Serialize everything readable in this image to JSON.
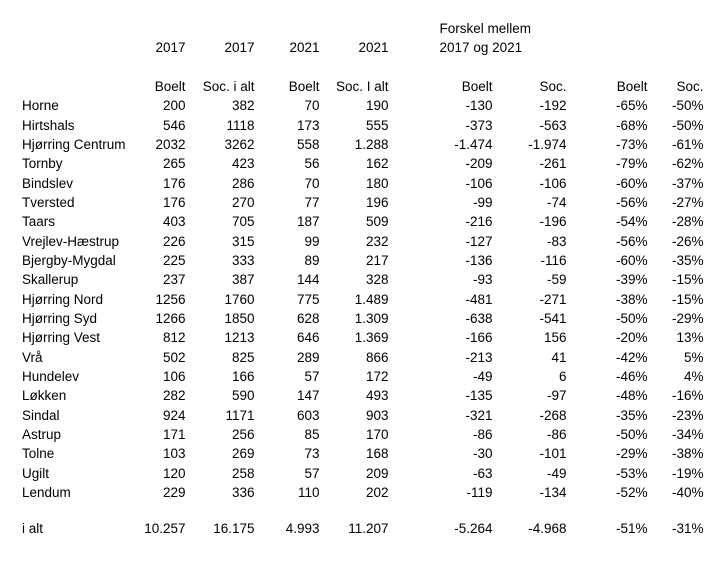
{
  "page": {
    "background_color": "#ffffff",
    "text_color": "#000000"
  },
  "table": {
    "year_headers": [
      "2017",
      "2017",
      "2021",
      "2021"
    ],
    "diff_header": {
      "line1": "Forskel mellem",
      "line2": "2017 og 2021"
    },
    "sub_headers": [
      "Boelt",
      "Soc. i alt",
      "Boelt",
      "Soc. I alt",
      "Boelt",
      "Soc.",
      "Boelt",
      "Soc."
    ],
    "rows": [
      {
        "label": "Horne",
        "values": [
          "200",
          "382",
          "70",
          "190",
          "-130",
          "-192",
          "-65%",
          "-50%"
        ]
      },
      {
        "label": "Hirtshals",
        "values": [
          "546",
          "1118",
          "173",
          "555",
          "-373",
          "-563",
          "-68%",
          "-50%"
        ]
      },
      {
        "label": "Hjørring Centrum",
        "values": [
          "2032",
          "3262",
          "558",
          "1.288",
          "-1.474",
          "-1.974",
          "-73%",
          "-61%"
        ]
      },
      {
        "label": "Tornby",
        "values": [
          "265",
          "423",
          "56",
          "162",
          "-209",
          "-261",
          "-79%",
          "-62%"
        ]
      },
      {
        "label": "Bindslev",
        "values": [
          "176",
          "286",
          "70",
          "180",
          "-106",
          "-106",
          "-60%",
          "-37%"
        ]
      },
      {
        "label": "Tversted",
        "values": [
          "176",
          "270",
          "77",
          "196",
          "-99",
          "-74",
          "-56%",
          "-27%"
        ]
      },
      {
        "label": "Taars",
        "values": [
          "403",
          "705",
          "187",
          "509",
          "-216",
          "-196",
          "-54%",
          "-28%"
        ]
      },
      {
        "label": "Vrejlev-Hæstrup",
        "values": [
          "226",
          "315",
          "99",
          "232",
          "-127",
          "-83",
          "-56%",
          "-26%"
        ]
      },
      {
        "label": "Bjergby-Mygdal",
        "values": [
          "225",
          "333",
          "89",
          "217",
          "-136",
          "-116",
          "-60%",
          "-35%"
        ]
      },
      {
        "label": "Skallerup",
        "values": [
          "237",
          "387",
          "144",
          "328",
          "-93",
          "-59",
          "-39%",
          "-15%"
        ]
      },
      {
        "label": "Hjørring Nord",
        "values": [
          "1256",
          "1760",
          "775",
          "1.489",
          "-481",
          "-271",
          "-38%",
          "-15%"
        ]
      },
      {
        "label": "Hjørring Syd",
        "values": [
          "1266",
          "1850",
          "628",
          "1.309",
          "-638",
          "-541",
          "-50%",
          "-29%"
        ]
      },
      {
        "label": "Hjørring Vest",
        "values": [
          "812",
          "1213",
          "646",
          "1.369",
          "-166",
          "156",
          "-20%",
          "13%"
        ]
      },
      {
        "label": "Vrå",
        "values": [
          "502",
          "825",
          "289",
          "866",
          "-213",
          "41",
          "-42%",
          "5%"
        ]
      },
      {
        "label": "Hundelev",
        "values": [
          "106",
          "166",
          "57",
          "172",
          "-49",
          "6",
          "-46%",
          "4%"
        ]
      },
      {
        "label": "Løkken",
        "values": [
          "282",
          "590",
          "147",
          "493",
          "-135",
          "-97",
          "-48%",
          "-16%"
        ]
      },
      {
        "label": "Sindal",
        "values": [
          "924",
          "1171",
          "603",
          "903",
          "-321",
          "-268",
          "-35%",
          "-23%"
        ]
      },
      {
        "label": "Astrup",
        "values": [
          "171",
          "256",
          "85",
          "170",
          "-86",
          "-86",
          "-50%",
          "-34%"
        ]
      },
      {
        "label": "Tolne",
        "values": [
          "103",
          "269",
          "73",
          "168",
          "-30",
          "-101",
          "-29%",
          "-38%"
        ]
      },
      {
        "label": "Ugilt",
        "values": [
          "120",
          "258",
          "57",
          "209",
          "-63",
          "-49",
          "-53%",
          "-19%"
        ]
      },
      {
        "label": "Lendum",
        "values": [
          "229",
          "336",
          "110",
          "202",
          "-119",
          "-134",
          "-52%",
          "-40%"
        ]
      }
    ],
    "total": {
      "label": "i alt",
      "values": [
        "10.257",
        "16.175",
        "4.993",
        "11.207",
        "-5.264",
        "-4.968",
        "-51%",
        "-31%"
      ]
    }
  },
  "chart_data": {
    "type": "table",
    "title": "Forskel mellem 2017 og 2021",
    "columns": [
      "",
      "2017 Boelt",
      "2017 Soc. i alt",
      "2021 Boelt",
      "2021 Soc. I alt",
      "Forskel Boelt",
      "Forskel Soc.",
      "Forskel Boelt %",
      "Forskel Soc. %"
    ],
    "rows": [
      [
        "Horne",
        200,
        382,
        70,
        190,
        -130,
        -192,
        "-65%",
        "-50%"
      ],
      [
        "Hirtshals",
        546,
        1118,
        173,
        555,
        -373,
        -563,
        "-68%",
        "-50%"
      ],
      [
        "Hjørring Centrum",
        2032,
        3262,
        558,
        1288,
        -1474,
        -1974,
        "-73%",
        "-61%"
      ],
      [
        "Tornby",
        265,
        423,
        56,
        162,
        -209,
        -261,
        "-79%",
        "-62%"
      ],
      [
        "Bindslev",
        176,
        286,
        70,
        180,
        -106,
        -106,
        "-60%",
        "-37%"
      ],
      [
        "Tversted",
        176,
        270,
        77,
        196,
        -99,
        -74,
        "-56%",
        "-27%"
      ],
      [
        "Taars",
        403,
        705,
        187,
        509,
        -216,
        -196,
        "-54%",
        "-28%"
      ],
      [
        "Vrejlev-Hæstrup",
        226,
        315,
        99,
        232,
        -127,
        -83,
        "-56%",
        "-26%"
      ],
      [
        "Bjergby-Mygdal",
        225,
        333,
        89,
        217,
        -136,
        -116,
        "-60%",
        "-35%"
      ],
      [
        "Skallerup",
        237,
        387,
        144,
        328,
        -93,
        -59,
        "-39%",
        "-15%"
      ],
      [
        "Hjørring Nord",
        1256,
        1760,
        775,
        1489,
        -481,
        -271,
        "-38%",
        "-15%"
      ],
      [
        "Hjørring Syd",
        1266,
        1850,
        628,
        1309,
        -638,
        -541,
        "-50%",
        "-29%"
      ],
      [
        "Hjørring Vest",
        812,
        1213,
        646,
        1369,
        -166,
        156,
        "-20%",
        "13%"
      ],
      [
        "Vrå",
        502,
        825,
        289,
        866,
        -213,
        41,
        "-42%",
        "5%"
      ],
      [
        "Hundelev",
        106,
        166,
        57,
        172,
        -49,
        6,
        "-46%",
        "4%"
      ],
      [
        "Løkken",
        282,
        590,
        147,
        493,
        -135,
        -97,
        "-48%",
        "-16%"
      ],
      [
        "Sindal",
        924,
        1171,
        603,
        903,
        -321,
        -268,
        "-35%",
        "-23%"
      ],
      [
        "Astrup",
        171,
        256,
        85,
        170,
        -86,
        -86,
        "-50%",
        "-34%"
      ],
      [
        "Tolne",
        103,
        269,
        73,
        168,
        -30,
        -101,
        "-29%",
        "-38%"
      ],
      [
        "Ugilt",
        120,
        258,
        57,
        209,
        -63,
        -49,
        "-53%",
        "-19%"
      ],
      [
        "Lendum",
        229,
        336,
        110,
        202,
        -119,
        -134,
        "-52%",
        "-40%"
      ],
      [
        "i alt",
        10257,
        16175,
        4993,
        11207,
        -5264,
        -4968,
        "-51%",
        "-31%"
      ]
    ]
  }
}
